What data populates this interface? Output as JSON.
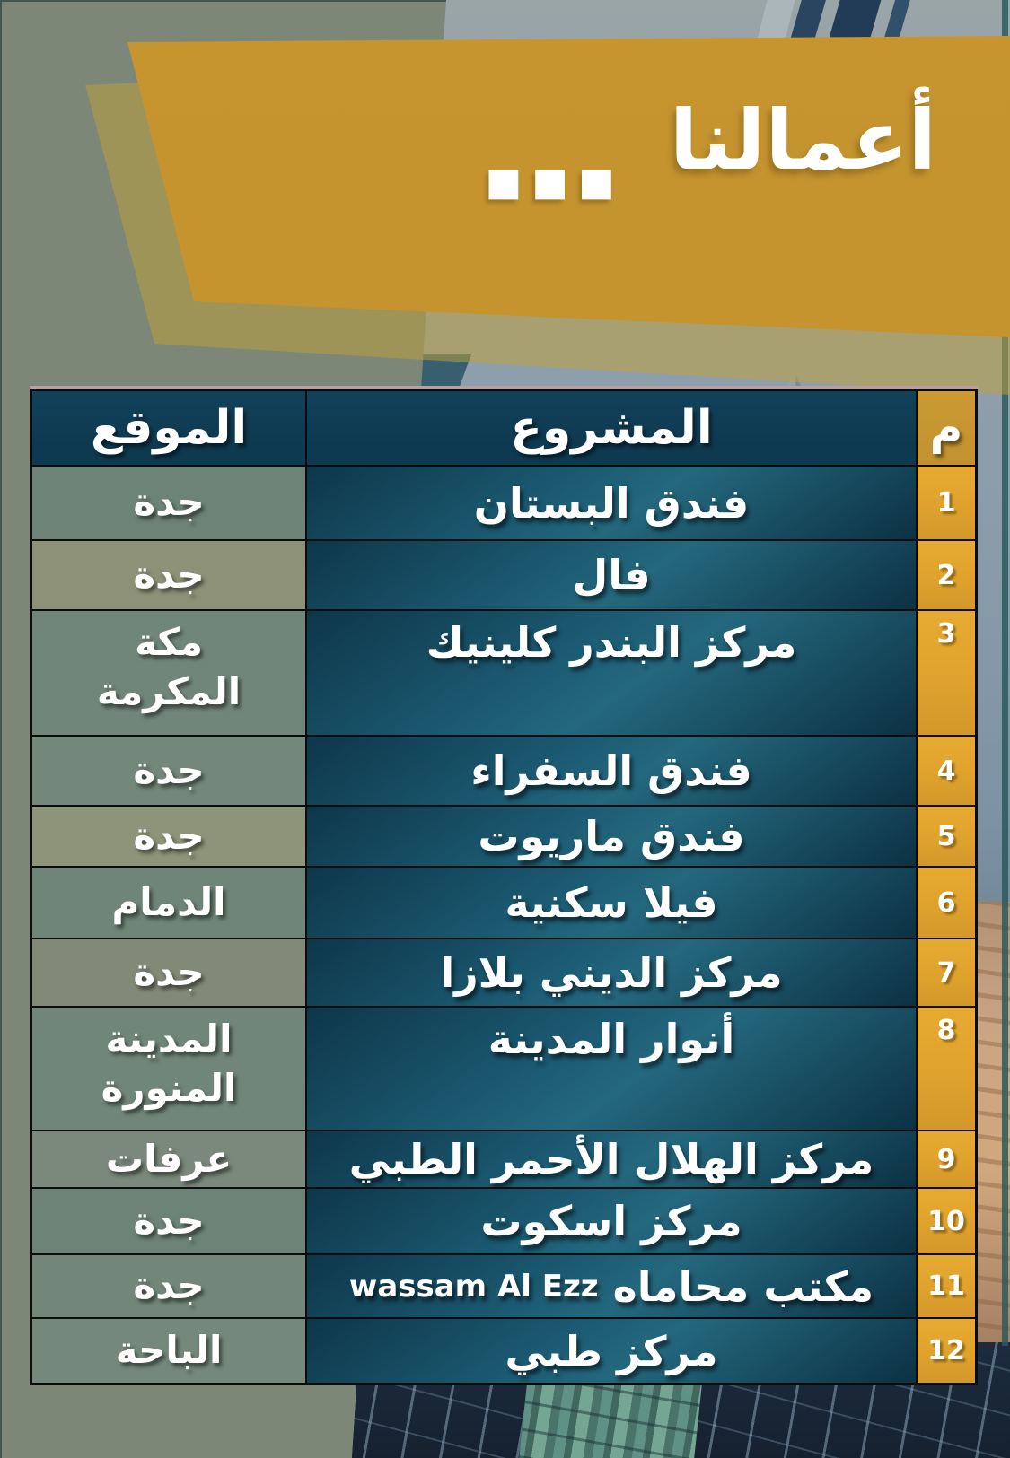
{
  "page": {
    "title": "أعمالنا",
    "title_dots": "▪▪▪"
  },
  "colors": {
    "page_bg": "#7c8778",
    "banner_gold": "#c6952f",
    "underlay_gold": "#c0a23c",
    "header_navy": "#0e3a51",
    "index_gold": "#dfa22d",
    "index_header_gold": "#c2922f",
    "project_teal_light": "#24687e",
    "project_teal_dark": "#0c3143",
    "table_line": "#0c0c0c"
  },
  "table": {
    "headers": {
      "index": "م",
      "project": "المشروع",
      "location": "الموقع"
    },
    "rows": [
      {
        "num": "1",
        "project": "فندق البستان",
        "location": "جدة",
        "loc_bg": "#6d8377"
      },
      {
        "num": "2",
        "project": "فال",
        "location": "جدة",
        "loc_bg": "#8d9177"
      },
      {
        "num": "3",
        "project": "مركز البندر كلينيك",
        "location": "مكة\nالمكرمة",
        "loc_bg": "#71867a"
      },
      {
        "num": "4",
        "project": "فندق السفراء",
        "location": "جدة",
        "loc_bg": "#73877a"
      },
      {
        "num": "5",
        "project": "فندق ماريوت",
        "location": "جدة",
        "loc_bg": "#8d9479"
      },
      {
        "num": "6",
        "project": "فيلا سكنية",
        "location": "الدمام",
        "loc_bg": "#6e8578"
      },
      {
        "num": "7",
        "project": "مركز الديني بلازا",
        "location": "جدة",
        "loc_bg": "#828977"
      },
      {
        "num": "8",
        "project": "أنوار المدينة",
        "location": "المدينة\nالمنورة",
        "loc_bg": "#71867a"
      },
      {
        "num": "9",
        "project": "مركز الهلال الأحمر الطبي",
        "location": "عرفات",
        "loc_bg": "#7a897c"
      },
      {
        "num": "10",
        "project": "مركز اسكوت",
        "location": "جدة",
        "loc_bg": "#6d8377"
      },
      {
        "num": "11",
        "project": "مكتب محاماه",
        "project_latin": "wassam Al Ezz",
        "location": "جدة",
        "loc_bg": "#72877a"
      },
      {
        "num": "12",
        "project": "مركز طبي",
        "location": "الباحة",
        "loc_bg": "#74887b"
      }
    ]
  }
}
